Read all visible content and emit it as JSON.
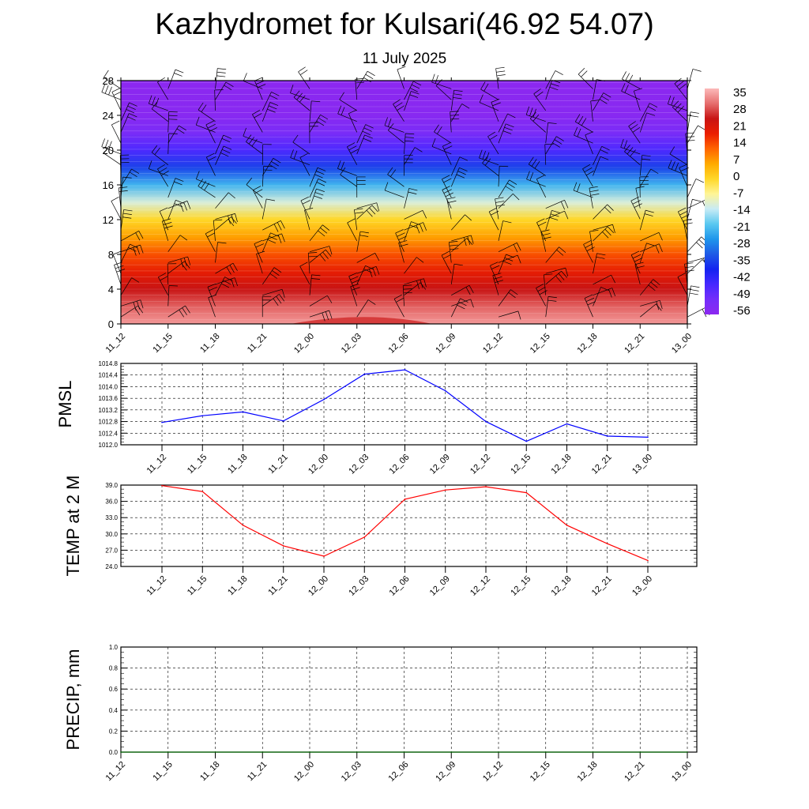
{
  "title": "Kazhydromet for Kulsari(46.92 54.07)",
  "subtitle": "11 July 2025",
  "time_labels": [
    "11_12",
    "11_15",
    "11_18",
    "11_21",
    "12_00",
    "12_03",
    "12_06",
    "12_09",
    "12_12",
    "12_15",
    "12_18",
    "12_21",
    "13_00"
  ],
  "colors": {
    "pmsl_line": "#0000ff",
    "temp_line": "#ff0000",
    "precip_line": "#006400",
    "grid": "#000000"
  },
  "chart_data": [
    {
      "type": "heatmap",
      "ylim": [
        0,
        28
      ],
      "yticks": [
        0,
        4,
        8,
        12,
        16,
        20,
        24,
        28
      ],
      "colorbar": {
        "labels": [
          "35",
          "28",
          "21",
          "14",
          "7",
          "0",
          "-7",
          "-14",
          "-21",
          "-28",
          "-35",
          "-42",
          "-49",
          "-56"
        ],
        "range": [
          -63,
          42
        ]
      },
      "temperature_profile": [
        {
          "level": 0,
          "value": 39
        },
        {
          "level": 2,
          "value": 34
        },
        {
          "level": 4,
          "value": 28
        },
        {
          "level": 6,
          "value": 22
        },
        {
          "level": 8,
          "value": 16
        },
        {
          "level": 10,
          "value": 8
        },
        {
          "level": 12,
          "value": 0
        },
        {
          "level": 14,
          "value": -12
        },
        {
          "level": 16,
          "value": -24
        },
        {
          "level": 18,
          "value": -38
        },
        {
          "level": 20,
          "value": -50
        },
        {
          "level": 22,
          "value": -58
        },
        {
          "level": 24,
          "value": -62
        },
        {
          "level": 28,
          "value": -63
        }
      ]
    },
    {
      "type": "line",
      "ylabel": "PMSL",
      "ylim": [
        1012.0,
        1014.8
      ],
      "yticks": [
        "1012.0",
        "1012.4",
        "1012.8",
        "1013.2",
        "1013.6",
        "1014.0",
        "1014.4",
        "1014.8"
      ],
      "x": [
        "11_12",
        "11_15",
        "11_18",
        "11_21",
        "12_00",
        "12_03",
        "12_06",
        "12_09",
        "12_12",
        "12_15",
        "12_18",
        "12_21",
        "13_00"
      ],
      "values": [
        1012.77,
        1013.0,
        1013.13,
        1012.82,
        1013.56,
        1014.43,
        1014.58,
        1013.86,
        1012.8,
        1012.12,
        1012.72,
        1012.3,
        1012.26
      ]
    },
    {
      "type": "line",
      "ylabel": "TEMP at 2 M",
      "ylim": [
        24.0,
        39.0
      ],
      "yticks": [
        "24.0",
        "27.0",
        "30.0",
        "33.0",
        "36.0",
        "39.0"
      ],
      "x": [
        "11_12",
        "11_15",
        "11_18",
        "11_21",
        "12_00",
        "12_03",
        "12_06",
        "12_09",
        "12_12",
        "12_15",
        "12_18",
        "12_21",
        "13_00"
      ],
      "values": [
        38.9,
        37.8,
        31.6,
        27.8,
        25.9,
        29.4,
        36.4,
        38.1,
        38.7,
        37.6,
        31.6,
        28.2,
        25.1
      ]
    },
    {
      "type": "line",
      "ylabel": "PRECIP, mm",
      "ylim": [
        0.0,
        1.0
      ],
      "yticks": [
        "0.0",
        "0.2",
        "0.4",
        "0.6",
        "0.8",
        "1.0"
      ],
      "x": [
        "11_12",
        "11_15",
        "11_18",
        "11_21",
        "12_00",
        "12_03",
        "12_06",
        "12_09",
        "12_12",
        "12_15",
        "12_18",
        "12_21",
        "13_00"
      ],
      "values": [
        0,
        0,
        0,
        0,
        0,
        0,
        0,
        0,
        0,
        0,
        0,
        0,
        0
      ]
    }
  ]
}
